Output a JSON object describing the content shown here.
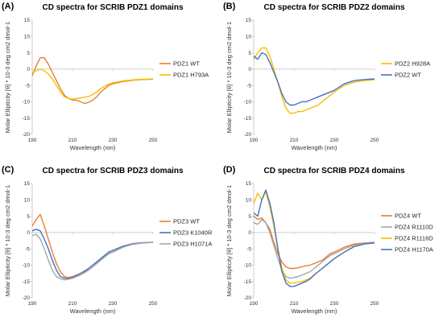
{
  "figure": {
    "panels": [
      {
        "label": "(A)"
      },
      {
        "label": "(B)"
      },
      {
        "label": "(C)"
      },
      {
        "label": "(D)"
      }
    ]
  },
  "chart_data": [
    {
      "type": "line",
      "title": "CD spectra for SCRIB PDZ1 domains",
      "xlabel": "Wavelength (nm)",
      "ylabel": "Molar Ellipticity [θ] * 10-3  deg cm2 dmol-1",
      "xlim": [
        190,
        250
      ],
      "ylim": [
        -20,
        15
      ],
      "xticks": [
        190,
        210,
        230,
        250
      ],
      "yticks": [
        -20,
        -15,
        -10,
        -5,
        0,
        5,
        10,
        15
      ],
      "grid": false,
      "legend_position": "right",
      "x": [
        190,
        192,
        194,
        196,
        198,
        200,
        202,
        204,
        206,
        208,
        210,
        212,
        214,
        216,
        218,
        220,
        222,
        224,
        226,
        228,
        230,
        235,
        240,
        245,
        250
      ],
      "series": [
        {
          "name": "PDZ1 WT",
          "color": "#ed7d31",
          "values": [
            -2,
            1,
            3.5,
            3.5,
            1.5,
            -1,
            -3.5,
            -6,
            -8,
            -9,
            -9.5,
            -9.5,
            -10,
            -10.5,
            -10.2,
            -9.5,
            -8.5,
            -7,
            -6,
            -5,
            -4.5,
            -3.8,
            -3.4,
            -3.2,
            -3.1
          ]
        },
        {
          "name": "PDZ1 H793A",
          "color": "#f5c000",
          "values": [
            -1,
            -0.5,
            0,
            -0.5,
            -1.5,
            -3,
            -5,
            -7,
            -8.5,
            -9,
            -9.2,
            -9,
            -8.8,
            -8.6,
            -8.4,
            -7.8,
            -7,
            -6,
            -5.2,
            -4.6,
            -4.2,
            -3.6,
            -3.3,
            -3.1,
            -3
          ]
        }
      ]
    },
    {
      "type": "line",
      "title": "CD spectra for SCRIB PDZ2 domains",
      "xlabel": "Wavelength (nm)",
      "ylabel": "Molar Ellipticity [θ] * 10-3  deg cm2 dmol-1",
      "xlim": [
        190,
        250
      ],
      "ylim": [
        -20,
        15
      ],
      "xticks": [
        190,
        210,
        230,
        250
      ],
      "yticks": [
        -20,
        -15,
        -10,
        -5,
        0,
        5,
        10,
        15
      ],
      "grid": false,
      "legend_position": "right",
      "x": [
        190,
        192,
        194,
        196,
        198,
        200,
        202,
        204,
        206,
        208,
        210,
        212,
        214,
        216,
        218,
        220,
        222,
        224,
        226,
        228,
        230,
        235,
        240,
        245,
        250
      ],
      "series": [
        {
          "name": "PDZ2 H928A",
          "color": "#f5c000",
          "values": [
            3,
            5,
            6.5,
            6.5,
            4,
            0,
            -4,
            -8.5,
            -12,
            -13.5,
            -13.5,
            -13,
            -13,
            -12.5,
            -12,
            -11.5,
            -11,
            -10,
            -9,
            -8,
            -7,
            -5,
            -4,
            -3.5,
            -3.3
          ]
        },
        {
          "name": "PDZ2 WT",
          "color": "#4472c4",
          "values": [
            4,
            3,
            5,
            4.5,
            2,
            -1,
            -4,
            -7.5,
            -10,
            -11,
            -11,
            -10.5,
            -10,
            -10,
            -9.5,
            -9,
            -8.5,
            -8,
            -7.5,
            -7,
            -6.5,
            -4.5,
            -3.5,
            -3.2,
            -3
          ]
        }
      ]
    },
    {
      "type": "line",
      "title": "CD spectra for SCRIB PDZ3 domains",
      "xlabel": "Wavelength (nm)",
      "ylabel": "Molar Ellipticity [θ] * 10-3  deg cm2 dmol-1",
      "xlim": [
        190,
        250
      ],
      "ylim": [
        -20,
        15
      ],
      "xticks": [
        190,
        210,
        230,
        250
      ],
      "yticks": [
        -20,
        -15,
        -10,
        -5,
        0,
        5,
        10,
        15
      ],
      "grid": false,
      "legend_position": "right",
      "x": [
        190,
        192,
        194,
        196,
        198,
        200,
        202,
        204,
        206,
        208,
        210,
        212,
        214,
        216,
        218,
        220,
        222,
        224,
        226,
        228,
        230,
        235,
        240,
        245,
        250
      ],
      "series": [
        {
          "name": "PDZ3 WT",
          "color": "#ed7d31",
          "values": [
            2,
            4,
            5.5,
            2,
            -2,
            -6,
            -9.5,
            -12,
            -13.5,
            -13.8,
            -13.5,
            -13,
            -12.5,
            -12,
            -11.5,
            -10.5,
            -9.5,
            -8.5,
            -7.5,
            -6.5,
            -6,
            -4.5,
            -3.5,
            -3.2,
            -3
          ]
        },
        {
          "name": "PDZ3 K1040R",
          "color": "#4472c4",
          "values": [
            0.5,
            1,
            0.5,
            -2,
            -5,
            -8.5,
            -11.5,
            -13.5,
            -14,
            -14,
            -13.8,
            -13.2,
            -12.5,
            -11.8,
            -11,
            -10,
            -9,
            -8,
            -7,
            -6,
            -5.5,
            -4.2,
            -3.4,
            -3.1,
            -3
          ]
        },
        {
          "name": "PDZ3 H1071A",
          "color": "#a5a5a5",
          "values": [
            -1,
            -0.5,
            -2,
            -5,
            -8.5,
            -11.5,
            -13.5,
            -14.2,
            -14.5,
            -14.3,
            -14,
            -13.5,
            -13,
            -12.3,
            -11.5,
            -10.5,
            -9.5,
            -8.5,
            -7.5,
            -6.5,
            -6,
            -4.5,
            -3.6,
            -3.2,
            -3
          ]
        }
      ]
    },
    {
      "type": "line",
      "title": "CD spectra for SCRIB PDZ4 domains",
      "xlabel": "Wavelength (nm)",
      "ylabel": "Molar Ellipticity [θ] * 10-3  deg cm2 dmol-1",
      "xlim": [
        190,
        250
      ],
      "ylim": [
        -20,
        15
      ],
      "xticks": [
        190,
        210,
        230,
        250
      ],
      "yticks": [
        -20,
        -15,
        -10,
        -5,
        0,
        5,
        10,
        15
      ],
      "grid": false,
      "legend_position": "right",
      "x": [
        190,
        192,
        194,
        196,
        198,
        200,
        202,
        204,
        206,
        208,
        210,
        212,
        214,
        216,
        218,
        220,
        222,
        224,
        226,
        228,
        230,
        235,
        240,
        245,
        250
      ],
      "series": [
        {
          "name": "PDZ4 WT",
          "color": "#ed7d31",
          "values": [
            5,
            4,
            4.5,
            3,
            1,
            -3,
            -6.5,
            -9,
            -10.5,
            -11,
            -11,
            -10.8,
            -10.5,
            -10.2,
            -10,
            -9.5,
            -9,
            -8.5,
            -7.5,
            -6.5,
            -6,
            -4.5,
            -3.5,
            -3.2,
            -3
          ]
        },
        {
          "name": "PDZ4 R1110D",
          "color": "#a5a5a5",
          "values": [
            3,
            2.5,
            4,
            3,
            0,
            -4,
            -8,
            -11.5,
            -13.5,
            -14,
            -13.8,
            -13.5,
            -13,
            -12.5,
            -12,
            -11,
            -10,
            -9,
            -8,
            -7,
            -6.5,
            -5,
            -3.8,
            -3.3,
            -3
          ]
        },
        {
          "name": "PDZ4 R1116D",
          "color": "#f5c000",
          "values": [
            9,
            12,
            10,
            12.5,
            8,
            2,
            -5,
            -11,
            -14.5,
            -15.5,
            -15.5,
            -15.2,
            -15,
            -14.5,
            -14,
            -13,
            -12,
            -11,
            -10,
            -9,
            -8,
            -6,
            -4.2,
            -3.5,
            -3.2
          ]
        },
        {
          "name": "PDZ4 H1170A",
          "color": "#4472c4",
          "values": [
            6,
            5,
            10,
            13,
            9,
            3,
            -5,
            -12,
            -15.5,
            -16.5,
            -16.5,
            -16,
            -15.5,
            -15,
            -14.2,
            -13,
            -12,
            -11,
            -10,
            -9,
            -8,
            -6,
            -4.3,
            -3.5,
            -3.2
          ]
        }
      ]
    }
  ]
}
